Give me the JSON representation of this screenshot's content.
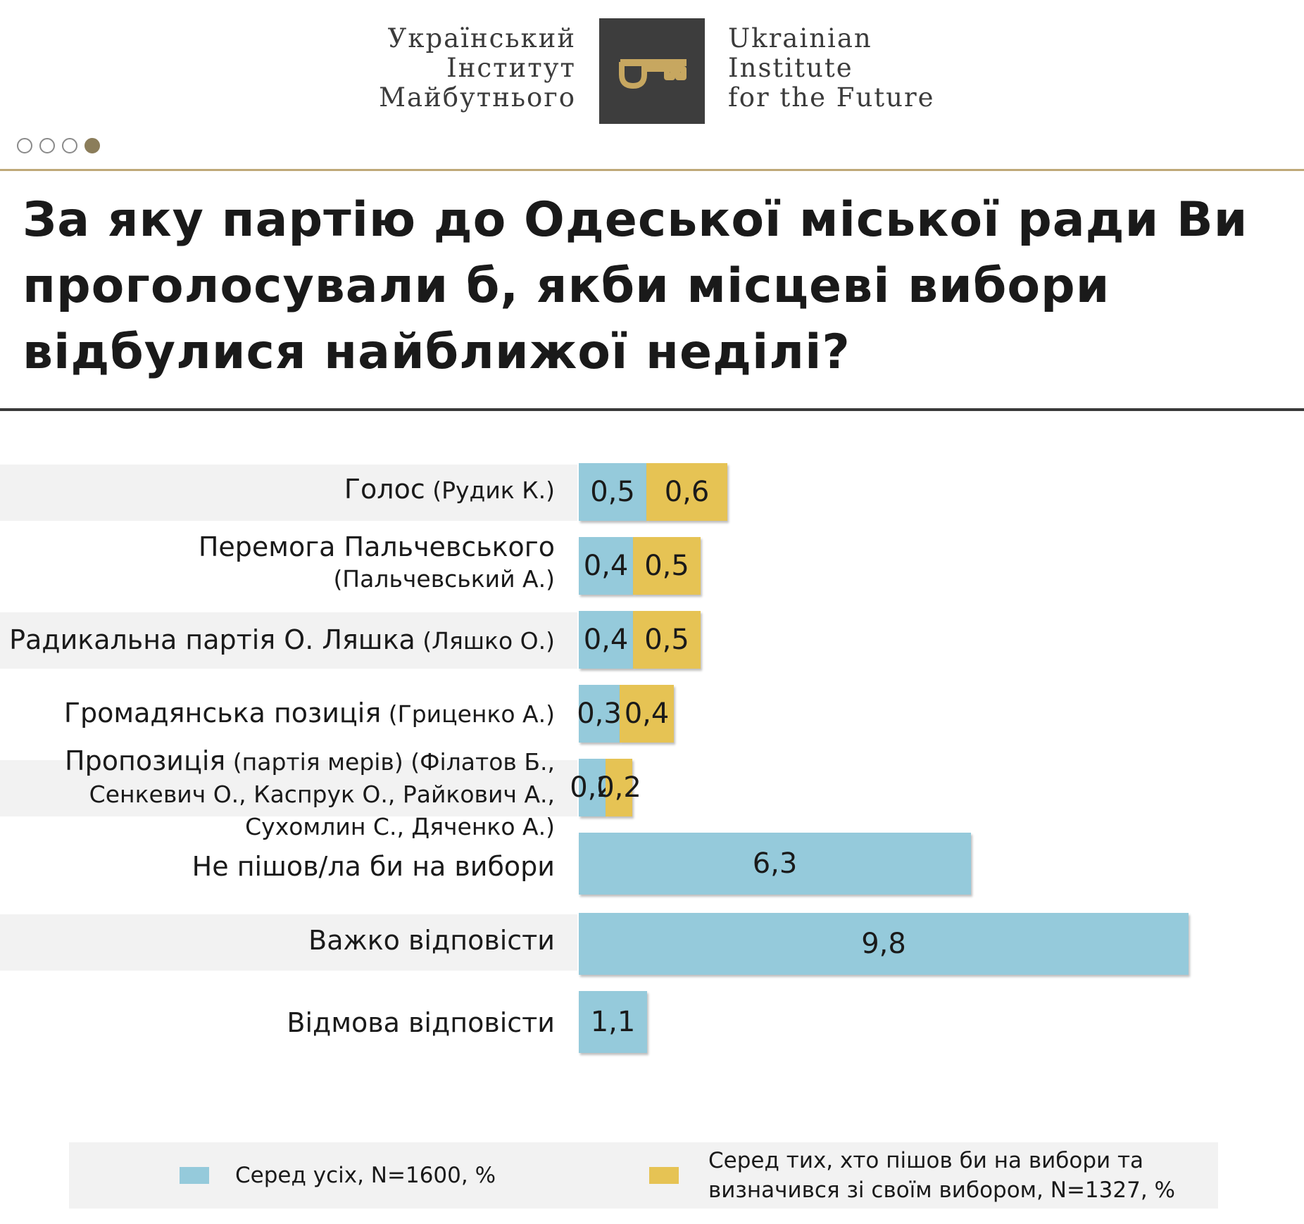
{
  "header": {
    "logo_left_lines": [
      "Український",
      "Інститут",
      "Майбутнього"
    ],
    "logo_right_lines": [
      "Ukrainian",
      "Institute",
      "for the Future"
    ],
    "logo_icon": "key-icon"
  },
  "pager": {
    "total": 4,
    "active": 4
  },
  "colors": {
    "series0": "#95cadb",
    "series1": "#e6c354",
    "accent": "#bfa978",
    "logo_bg": "#3d3d3d"
  },
  "chart_data": {
    "type": "bar",
    "orientation": "horizontal",
    "title": "За яку партію до Одеської міської ради Ви проголосували б, якби місцеві вибори відбулися найближої неділі?",
    "categories": [
      {
        "name": "Голос",
        "sub": "(Рудик К.)"
      },
      {
        "name": "Перемога Пальчевського",
        "sub": "(Пальчевський А.)"
      },
      {
        "name": "Радикальна партія О. Ляшка",
        "sub": "(Ляшко О.)"
      },
      {
        "name": "Громадянська позиція",
        "sub": "(Гриценко А.)"
      },
      {
        "name": "Пропозиція",
        "sub": "(партія мерів) (Філатов Б., Сенкевич О., Каспрук О., Райкович А., Сухомлин С., Дяченко А.)"
      },
      {
        "name": "Не пішов/ла би на вибори",
        "sub": ""
      },
      {
        "name": "Важко відповісти",
        "sub": ""
      },
      {
        "name": "Відмова відповісти",
        "sub": ""
      }
    ],
    "series": [
      {
        "name": "Серед усіх, N=1600, %",
        "values": [
          0.5,
          0.4,
          0.4,
          0.3,
          0.2,
          6.3,
          9.8,
          1.1
        ],
        "labels": [
          "0,5",
          "0,4",
          "0,4",
          "0,3",
          "0,2",
          "6,3",
          "9,8",
          "1,1"
        ]
      },
      {
        "name": "Серед тих, хто пішов би на вибори та визначився зі своїм вибором, N=1327, %",
        "values": [
          0.6,
          0.5,
          0.5,
          0.4,
          0.2,
          null,
          null,
          null
        ],
        "labels": [
          "0,6",
          "0,5",
          "0,5",
          "0,4",
          "0,2",
          "",
          "",
          ""
        ]
      }
    ],
    "legend_position": "bottom",
    "grid": false
  }
}
